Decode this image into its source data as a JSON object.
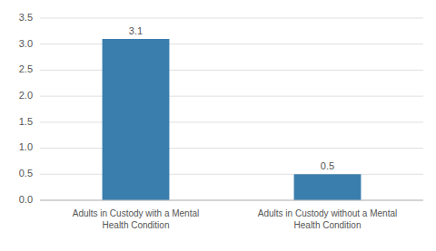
{
  "chart_data": {
    "type": "bar",
    "categories": [
      "Adults in Custody with a Mental\nHealth Condition",
      "Adults in Custody without a Mental\nHealth Condition"
    ],
    "values": [
      3.1,
      0.5
    ],
    "color": "#3a7ead",
    "ylim": [
      0,
      3.5
    ],
    "yticks": [
      {
        "value": 0.0,
        "label": "0.0"
      },
      0.5,
      {
        "value": 1.0,
        "label": "1.0"
      },
      1.5,
      {
        "value": 2.0,
        "label": "2.0"
      },
      2.5,
      {
        "value": 3.0,
        "label": "3.0"
      },
      3.5
    ],
    "grid": true,
    "data_labels": true
  }
}
